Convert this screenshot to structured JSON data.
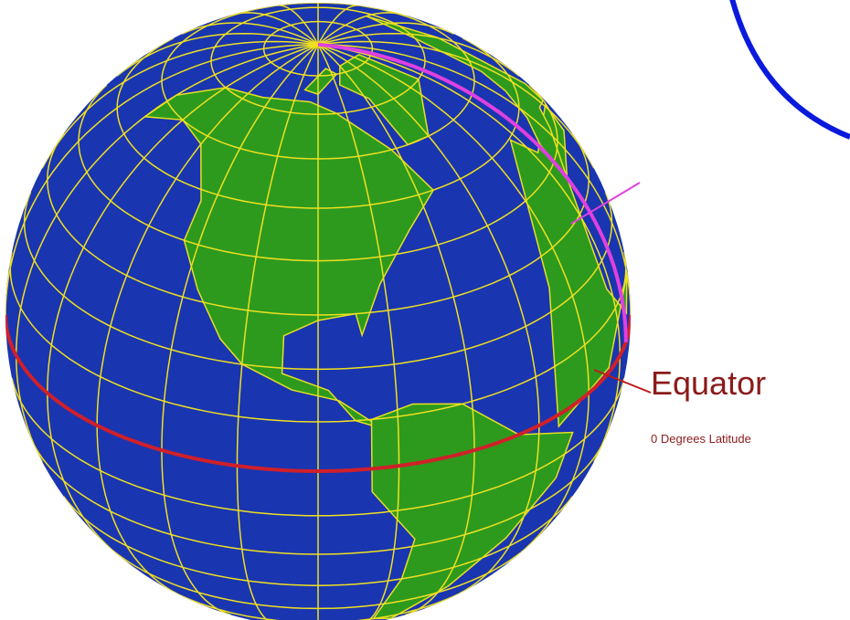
{
  "labels": {
    "equator": "Equator",
    "equator_note": "0 Degrees Latitude"
  }
}
